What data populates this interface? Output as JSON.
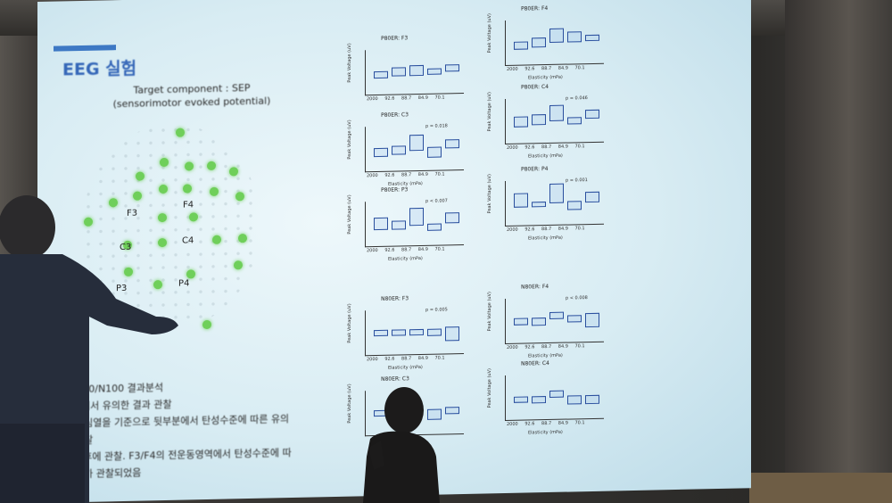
{
  "slide": {
    "title": "EEG 실험",
    "target_line1": "Target component : SEP",
    "target_line2": "(sensorimotor evoked potential)",
    "electrodes": [
      "F3",
      "F4",
      "C3",
      "C4",
      "P3",
      "P4"
    ],
    "notes": [
      "N80/N100 결과분석",
      "0에서 유의한 결과 관찰",
      "중심열을 기준으로 뒷부분에서 탄성수준에 따른 유의",
      "관찰",
      "s 후에 관찰. F3/F4의 전운동영역에서 탄성수준에 따",
      "과가 관찰되었음"
    ],
    "plots": [
      {
        "title": "P80ER: F3",
        "pval": ""
      },
      {
        "title": "P80ER: F4",
        "pval": ""
      },
      {
        "title": "P80ER: C3",
        "pval": "p = 0.018"
      },
      {
        "title": "P80ER: C4",
        "pval": "p = 0.046"
      },
      {
        "title": "P80ER: P3",
        "pval": "p < 0.007"
      },
      {
        "title": "P80ER: P4",
        "pval": "p = 0.001"
      },
      {
        "title": "N80ER: F3",
        "pval": "p = 0.005"
      },
      {
        "title": "N80ER: F4",
        "pval": "p < 0.008"
      },
      {
        "title": "N80ER: C3",
        "pval": ""
      },
      {
        "title": "N80ER: C4",
        "pval": ""
      }
    ],
    "ylabel": "Peak Voltage (uV)",
    "xlabel": "Elasticity (mPa)",
    "xticks": "2000 92.6 88.7 84.9 70.1"
  }
}
